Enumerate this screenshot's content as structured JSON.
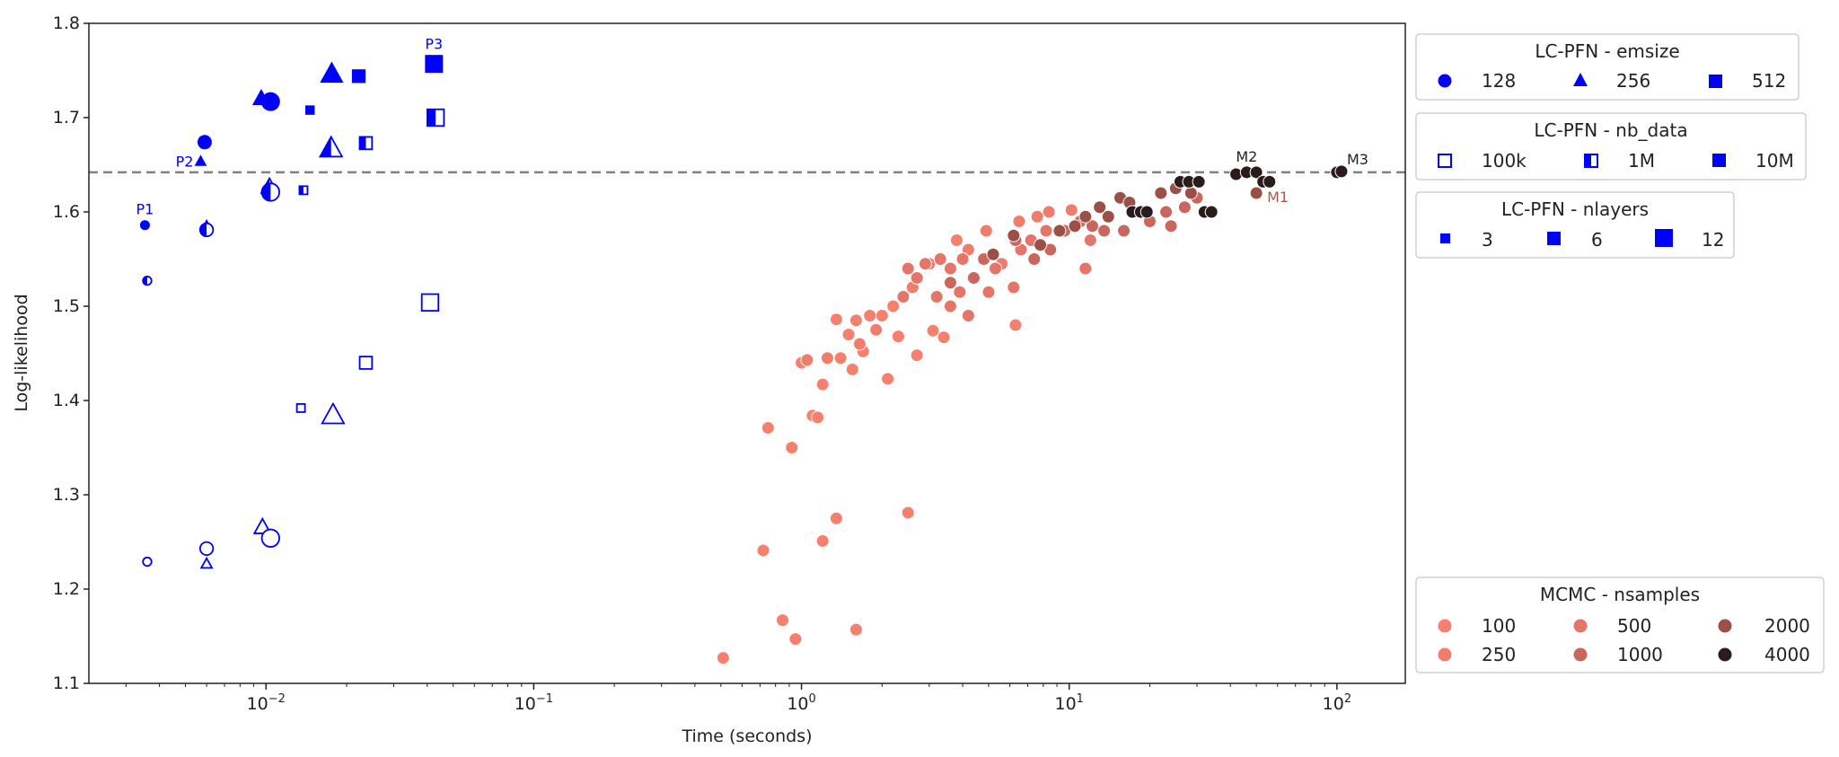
{
  "chart_data": {
    "type": "scatter",
    "title": "",
    "xlabel": "Time (seconds)",
    "ylabel": "Log-likelihood",
    "xscale": "log",
    "xlim": [
      0.00218,
      180
    ],
    "ylim": [
      1.1,
      1.8
    ],
    "xticks": [
      {
        "base": "10",
        "exp": "−2",
        "value": 0.01
      },
      {
        "base": "10",
        "exp": "−1",
        "value": 0.1
      },
      {
        "base": "10",
        "exp": "0",
        "value": 1
      },
      {
        "base": "10",
        "exp": "1",
        "value": 10
      },
      {
        "base": "10",
        "exp": "2",
        "value": 100
      }
    ],
    "yticks": [
      "1.1",
      "1.2",
      "1.3",
      "1.4",
      "1.5",
      "1.6",
      "1.7",
      "1.8"
    ],
    "grid": false,
    "reference_line": {
      "y": 1.642,
      "style": "dashed",
      "color": "#808080"
    },
    "pfn_color": "#0000ff",
    "legends": {
      "emsize": {
        "title": "LC-PFN - emsize",
        "items": [
          {
            "label": "128",
            "marker": "circle"
          },
          {
            "label": "256",
            "marker": "triangle"
          },
          {
            "label": "512",
            "marker": "square"
          }
        ]
      },
      "nb_data": {
        "title": "LC-PFN - nb_data",
        "items": [
          {
            "label": "100k",
            "fill": "open"
          },
          {
            "label": "1M",
            "fill": "half"
          },
          {
            "label": "10M",
            "fill": "full"
          }
        ]
      },
      "nlayers": {
        "title": "LC-PFN - nlayers",
        "items": [
          {
            "label": "3",
            "size": "small"
          },
          {
            "label": "6",
            "size": "medium"
          },
          {
            "label": "12",
            "size": "large"
          }
        ]
      },
      "mcmc": {
        "title": "MCMC - nsamples",
        "items": [
          {
            "label": "100",
            "color": "#f6806e"
          },
          {
            "label": "250",
            "color": "#f07d6c"
          },
          {
            "label": "500",
            "color": "#e47568"
          },
          {
            "label": "1000",
            "color": "#c9665d"
          },
          {
            "label": "2000",
            "color": "#9c4f47"
          },
          {
            "label": "4000",
            "color": "#2a1c1d"
          }
        ]
      }
    },
    "lcpfn_points": [
      {
        "emsize": 128,
        "nb_data": "10M",
        "nlayers": 3,
        "x": 0.00353,
        "y": 1.586,
        "label": "P1"
      },
      {
        "emsize": 128,
        "nb_data": "1M",
        "nlayers": 3,
        "x": 0.0036,
        "y": 1.527
      },
      {
        "emsize": 128,
        "nb_data": "100k",
        "nlayers": 3,
        "x": 0.0036,
        "y": 1.229
      },
      {
        "emsize": 256,
        "nb_data": "10M",
        "nlayers": 3,
        "x": 0.0057,
        "y": 1.654,
        "label": "P2"
      },
      {
        "emsize": 256,
        "nb_data": "1M",
        "nlayers": 3,
        "x": 0.006,
        "y": 1.585
      },
      {
        "emsize": 256,
        "nb_data": "100k",
        "nlayers": 3,
        "x": 0.006,
        "y": 1.227
      },
      {
        "emsize": 128,
        "nb_data": "10M",
        "nlayers": 6,
        "x": 0.0059,
        "y": 1.674
      },
      {
        "emsize": 128,
        "nb_data": "1M",
        "nlayers": 6,
        "x": 0.006,
        "y": 1.581
      },
      {
        "emsize": 128,
        "nb_data": "100k",
        "nlayers": 6,
        "x": 0.006,
        "y": 1.243
      },
      {
        "emsize": 256,
        "nb_data": "10M",
        "nlayers": 6,
        "x": 0.0096,
        "y": 1.721
      },
      {
        "emsize": 256,
        "nb_data": "1M",
        "nlayers": 6,
        "x": 0.0103,
        "y": 1.627
      },
      {
        "emsize": 256,
        "nb_data": "100k",
        "nlayers": 6,
        "x": 0.0097,
        "y": 1.266
      },
      {
        "emsize": 128,
        "nb_data": "10M",
        "nlayers": 12,
        "x": 0.0104,
        "y": 1.717
      },
      {
        "emsize": 128,
        "nb_data": "1M",
        "nlayers": 12,
        "x": 0.0104,
        "y": 1.621
      },
      {
        "emsize": 128,
        "nb_data": "100k",
        "nlayers": 12,
        "x": 0.0104,
        "y": 1.254
      },
      {
        "emsize": 512,
        "nb_data": "10M",
        "nlayers": 3,
        "x": 0.0146,
        "y": 1.708
      },
      {
        "emsize": 512,
        "nb_data": "1M",
        "nlayers": 3,
        "x": 0.0138,
        "y": 1.623
      },
      {
        "emsize": 512,
        "nb_data": "100k",
        "nlayers": 3,
        "x": 0.0135,
        "y": 1.392
      },
      {
        "emsize": 256,
        "nb_data": "10M",
        "nlayers": 12,
        "x": 0.0176,
        "y": 1.747
      },
      {
        "emsize": 256,
        "nb_data": "1M",
        "nlayers": 12,
        "x": 0.0175,
        "y": 1.668
      },
      {
        "emsize": 256,
        "nb_data": "100k",
        "nlayers": 12,
        "x": 0.0178,
        "y": 1.385
      },
      {
        "emsize": 512,
        "nb_data": "10M",
        "nlayers": 6,
        "x": 0.0222,
        "y": 1.744
      },
      {
        "emsize": 512,
        "nb_data": "1M",
        "nlayers": 6,
        "x": 0.0236,
        "y": 1.673
      },
      {
        "emsize": 512,
        "nb_data": "100k",
        "nlayers": 6,
        "x": 0.0236,
        "y": 1.44
      },
      {
        "emsize": 512,
        "nb_data": "10M",
        "nlayers": 12,
        "x": 0.0424,
        "y": 1.757,
        "label": "P3"
      },
      {
        "emsize": 512,
        "nb_data": "1M",
        "nlayers": 12,
        "x": 0.043,
        "y": 1.7
      },
      {
        "emsize": 512,
        "nb_data": "100k",
        "nlayers": 12,
        "x": 0.041,
        "y": 1.504
      }
    ],
    "mcmc_points": [
      {
        "n": 100,
        "pts": [
          [
            0.51,
            1.127
          ],
          [
            0.72,
            1.241
          ],
          [
            0.85,
            1.167
          ],
          [
            0.95,
            1.147
          ],
          [
            1.6,
            1.157
          ],
          [
            1.2,
            1.251
          ],
          [
            1.35,
            1.275
          ],
          [
            2.5,
            1.281
          ],
          [
            0.75,
            1.371
          ],
          [
            0.92,
            1.35
          ],
          [
            1.0,
            1.44
          ],
          [
            1.1,
            1.384
          ],
          [
            1.15,
            1.382
          ],
          [
            1.2,
            1.417
          ],
          [
            1.35,
            1.486
          ],
          [
            1.4,
            1.445
          ],
          [
            1.55,
            1.433
          ],
          [
            1.6,
            1.485
          ],
          [
            1.7,
            1.452
          ],
          [
            2.1,
            1.423
          ],
          [
            2.3,
            1.468
          ],
          [
            2.7,
            1.448
          ],
          [
            3.1,
            1.474
          ],
          [
            3.4,
            1.467
          ],
          [
            6.3,
            1.48
          ],
          [
            2.0,
            1.49
          ],
          [
            1.5,
            1.47
          ],
          [
            1.8,
            1.49
          ],
          [
            2.2,
            1.5
          ],
          [
            3.8,
            1.57
          ]
        ]
      },
      {
        "n": 250,
        "pts": [
          [
            1.05,
            1.443
          ],
          [
            1.25,
            1.445
          ],
          [
            1.65,
            1.46
          ],
          [
            1.9,
            1.475
          ],
          [
            2.6,
            1.52
          ],
          [
            4.2,
            1.56
          ],
          [
            4.9,
            1.58
          ],
          [
            6.5,
            1.59
          ],
          [
            7.6,
            1.595
          ],
          [
            8.4,
            1.6
          ],
          [
            10.2,
            1.602
          ],
          [
            3.0,
            1.545
          ],
          [
            5.6,
            1.545
          ]
        ]
      },
      {
        "n": 500,
        "pts": [
          [
            2.5,
            1.54
          ],
          [
            2.9,
            1.545
          ],
          [
            3.3,
            1.55
          ],
          [
            3.6,
            1.54
          ],
          [
            4.0,
            1.55
          ],
          [
            2.4,
            1.51
          ],
          [
            3.2,
            1.51
          ],
          [
            4.2,
            1.49
          ],
          [
            3.9,
            1.515
          ],
          [
            2.7,
            1.53
          ],
          [
            5.3,
            1.54
          ],
          [
            6.2,
            1.52
          ],
          [
            6.6,
            1.56
          ],
          [
            7.2,
            1.57
          ],
          [
            3.6,
            1.5
          ],
          [
            5.0,
            1.515
          ],
          [
            8.2,
            1.58
          ],
          [
            11.5,
            1.54
          ],
          [
            12,
            1.57
          ]
        ]
      },
      {
        "n": 1000,
        "pts": [
          [
            3.6,
            1.525
          ],
          [
            4.4,
            1.53
          ],
          [
            4.8,
            1.55
          ],
          [
            6.3,
            1.57
          ],
          [
            7.4,
            1.55
          ],
          [
            8.5,
            1.56
          ],
          [
            9.6,
            1.58
          ],
          [
            11.0,
            1.59
          ],
          [
            12.2,
            1.585
          ],
          [
            13.5,
            1.58
          ],
          [
            16.0,
            1.58
          ],
          [
            17.5,
            1.6
          ],
          [
            20.0,
            1.59
          ],
          [
            23.0,
            1.6
          ],
          [
            27,
            1.605
          ],
          [
            24,
            1.585
          ],
          [
            30,
            1.615
          ]
        ]
      },
      {
        "n": 2000,
        "pts": [
          [
            5.2,
            1.555
          ],
          [
            6.2,
            1.575
          ],
          [
            7.8,
            1.565
          ],
          [
            9.2,
            1.58
          ],
          [
            10.5,
            1.585
          ],
          [
            13.0,
            1.605
          ],
          [
            15.5,
            1.615
          ],
          [
            16.8,
            1.61
          ],
          [
            22,
            1.62
          ],
          [
            25,
            1.625
          ],
          [
            28.5,
            1.62
          ],
          [
            50,
            1.62
          ],
          [
            11.5,
            1.595
          ],
          [
            14,
            1.595
          ]
        ]
      },
      {
        "n": 4000,
        "pts": [
          [
            17.2,
            1.6
          ],
          [
            18.5,
            1.6
          ],
          [
            19.5,
            1.6
          ],
          [
            26,
            1.632
          ],
          [
            28,
            1.632
          ],
          [
            30.5,
            1.632
          ],
          [
            32,
            1.6
          ],
          [
            34,
            1.6
          ],
          [
            42,
            1.64
          ],
          [
            46,
            1.642
          ],
          [
            50,
            1.642
          ],
          [
            53,
            1.632
          ],
          [
            56,
            1.632
          ],
          [
            100,
            1.642
          ],
          [
            104,
            1.643
          ]
        ]
      }
    ],
    "annotations": [
      {
        "text": "M1",
        "x": 50,
        "y": 1.62,
        "color": "#a65a52"
      },
      {
        "text": "M2",
        "x": 46,
        "y": 1.642,
        "color": "#222222"
      },
      {
        "text": "M3",
        "x": 104,
        "y": 1.643,
        "color": "#222222"
      }
    ]
  }
}
